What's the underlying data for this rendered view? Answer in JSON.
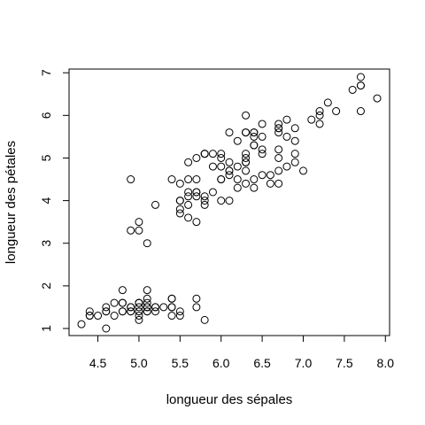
{
  "chart_data": {
    "type": "scatter",
    "title": "",
    "xlabel": "longueur des sépales",
    "ylabel": "longueur des pétales",
    "xlim": [
      4.3,
      7.9
    ],
    "ylim": [
      1.0,
      6.9
    ],
    "x_ticks": [
      4.5,
      5.0,
      5.5,
      6.0,
      6.5,
      7.0,
      7.5,
      8.0
    ],
    "x_tick_labels": [
      "4.5",
      "5.0",
      "5.5",
      "6.0",
      "6.5",
      "7.0",
      "7.5",
      "8.0"
    ],
    "y_ticks": [
      1,
      2,
      3,
      4,
      5,
      6,
      7
    ],
    "y_tick_labels": [
      "1",
      "2",
      "3",
      "4",
      "5",
      "6",
      "7"
    ],
    "grid": false,
    "legend": "none",
    "marker": "open-circle",
    "color": "#000000",
    "points": [
      [
        5.1,
        1.4
      ],
      [
        4.9,
        1.4
      ],
      [
        4.7,
        1.3
      ],
      [
        4.6,
        1.5
      ],
      [
        5.0,
        1.4
      ],
      [
        5.4,
        1.7
      ],
      [
        4.6,
        1.4
      ],
      [
        5.0,
        1.5
      ],
      [
        4.4,
        1.4
      ],
      [
        4.9,
        1.5
      ],
      [
        5.4,
        1.5
      ],
      [
        4.8,
        1.6
      ],
      [
        4.8,
        1.4
      ],
      [
        4.3,
        1.1
      ],
      [
        5.8,
        1.2
      ],
      [
        5.7,
        1.5
      ],
      [
        5.4,
        1.3
      ],
      [
        5.1,
        1.4
      ],
      [
        5.7,
        1.7
      ],
      [
        5.1,
        1.5
      ],
      [
        5.4,
        1.7
      ],
      [
        5.1,
        1.5
      ],
      [
        4.6,
        1.0
      ],
      [
        5.1,
        1.7
      ],
      [
        4.8,
        1.9
      ],
      [
        5.0,
        1.6
      ],
      [
        5.0,
        1.6
      ],
      [
        5.2,
        1.5
      ],
      [
        5.2,
        1.4
      ],
      [
        4.7,
        1.6
      ],
      [
        4.8,
        1.6
      ],
      [
        5.4,
        1.5
      ],
      [
        5.2,
        1.5
      ],
      [
        5.5,
        1.4
      ],
      [
        4.9,
        1.5
      ],
      [
        5.0,
        1.2
      ],
      [
        5.5,
        1.3
      ],
      [
        4.9,
        1.4
      ],
      [
        4.4,
        1.3
      ],
      [
        5.1,
        1.5
      ],
      [
        5.0,
        1.3
      ],
      [
        4.5,
        1.3
      ],
      [
        4.4,
        1.3
      ],
      [
        5.0,
        1.6
      ],
      [
        5.1,
        1.9
      ],
      [
        4.8,
        1.4
      ],
      [
        5.1,
        1.6
      ],
      [
        4.6,
        1.4
      ],
      [
        5.3,
        1.5
      ],
      [
        5.0,
        1.4
      ],
      [
        7.0,
        4.7
      ],
      [
        6.4,
        4.5
      ],
      [
        6.9,
        4.9
      ],
      [
        5.5,
        4.0
      ],
      [
        6.5,
        4.6
      ],
      [
        5.7,
        4.5
      ],
      [
        6.3,
        4.7
      ],
      [
        4.9,
        3.3
      ],
      [
        6.6,
        4.6
      ],
      [
        5.2,
        3.9
      ],
      [
        5.0,
        3.5
      ],
      [
        5.9,
        4.2
      ],
      [
        6.0,
        4.0
      ],
      [
        6.1,
        4.7
      ],
      [
        5.6,
        3.6
      ],
      [
        6.7,
        4.4
      ],
      [
        5.6,
        4.5
      ],
      [
        5.8,
        4.1
      ],
      [
        6.2,
        4.5
      ],
      [
        5.6,
        3.9
      ],
      [
        5.9,
        4.8
      ],
      [
        6.1,
        4.0
      ],
      [
        6.3,
        4.9
      ],
      [
        6.1,
        4.7
      ],
      [
        6.4,
        4.3
      ],
      [
        6.6,
        4.4
      ],
      [
        6.8,
        4.8
      ],
      [
        6.7,
        5.0
      ],
      [
        6.0,
        4.5
      ],
      [
        5.7,
        3.5
      ],
      [
        5.5,
        3.8
      ],
      [
        5.5,
        3.7
      ],
      [
        5.8,
        3.9
      ],
      [
        6.0,
        5.1
      ],
      [
        5.4,
        4.5
      ],
      [
        6.0,
        4.5
      ],
      [
        6.7,
        4.7
      ],
      [
        6.3,
        4.4
      ],
      [
        5.6,
        4.1
      ],
      [
        5.5,
        4.0
      ],
      [
        5.5,
        4.4
      ],
      [
        6.1,
        4.6
      ],
      [
        5.8,
        4.0
      ],
      [
        5.0,
        3.3
      ],
      [
        5.6,
        4.2
      ],
      [
        5.7,
        4.2
      ],
      [
        5.7,
        4.2
      ],
      [
        6.2,
        4.3
      ],
      [
        5.1,
        3.0
      ],
      [
        5.7,
        4.1
      ],
      [
        6.3,
        6.0
      ],
      [
        5.8,
        5.1
      ],
      [
        7.1,
        5.9
      ],
      [
        6.3,
        5.6
      ],
      [
        6.5,
        5.8
      ],
      [
        7.6,
        6.6
      ],
      [
        4.9,
        4.5
      ],
      [
        7.3,
        6.3
      ],
      [
        6.7,
        5.8
      ],
      [
        7.2,
        6.1
      ],
      [
        6.5,
        5.1
      ],
      [
        6.4,
        5.3
      ],
      [
        6.8,
        5.5
      ],
      [
        5.7,
        5.0
      ],
      [
        5.8,
        5.1
      ],
      [
        6.4,
        5.3
      ],
      [
        6.5,
        5.5
      ],
      [
        7.7,
        6.7
      ],
      [
        7.7,
        6.9
      ],
      [
        6.0,
        5.0
      ],
      [
        6.9,
        5.7
      ],
      [
        5.6,
        4.9
      ],
      [
        7.7,
        6.7
      ],
      [
        6.3,
        4.9
      ],
      [
        6.7,
        5.7
      ],
      [
        7.2,
        6.0
      ],
      [
        6.2,
        4.8
      ],
      [
        6.1,
        4.9
      ],
      [
        6.4,
        5.6
      ],
      [
        7.2,
        5.8
      ],
      [
        7.4,
        6.1
      ],
      [
        7.9,
        6.4
      ],
      [
        6.4,
        5.6
      ],
      [
        6.3,
        5.1
      ],
      [
        6.1,
        5.6
      ],
      [
        7.7,
        6.1
      ],
      [
        6.3,
        5.6
      ],
      [
        6.4,
        5.5
      ],
      [
        6.0,
        4.8
      ],
      [
        6.9,
        5.4
      ],
      [
        6.7,
        5.6
      ],
      [
        6.9,
        5.1
      ],
      [
        5.8,
        5.1
      ],
      [
        6.8,
        5.9
      ],
      [
        6.7,
        5.7
      ],
      [
        6.7,
        5.2
      ],
      [
        6.3,
        5.0
      ],
      [
        6.5,
        5.2
      ],
      [
        6.2,
        5.4
      ],
      [
        5.9,
        5.1
      ]
    ]
  }
}
